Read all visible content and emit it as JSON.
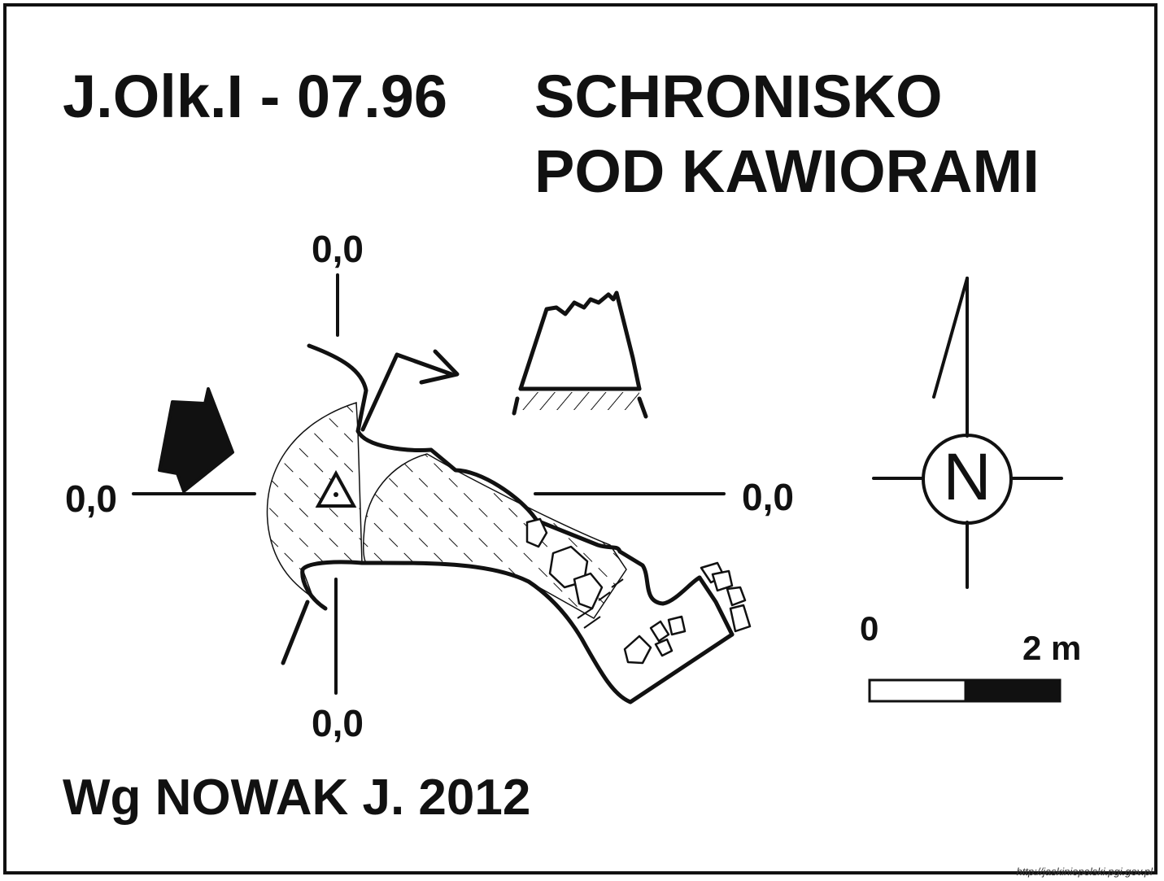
{
  "title": {
    "code": "J.Olk.I - 07.96",
    "name_line1": "SCHRONISKO",
    "name_line2": "POD KAWIORAMI"
  },
  "datum_labels": {
    "top": "0,0",
    "left": "0,0",
    "right": "0,0",
    "bottom": "0,0"
  },
  "north_arrow": {
    "letter": "N"
  },
  "scale_bar": {
    "start_label": "0",
    "end_label": "2 m"
  },
  "author": "Wg NOWAK J. 2012",
  "source_url": "http://jaskiniepolski.pgi.gov.pl"
}
